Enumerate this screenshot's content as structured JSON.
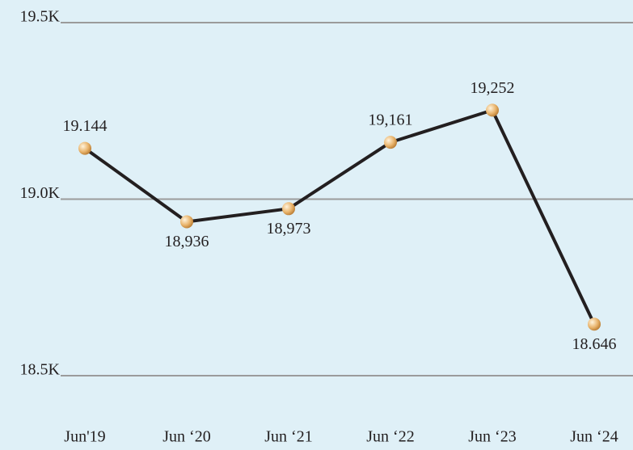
{
  "chart_data": {
    "type": "line",
    "categories": [
      "Jun'19",
      "Jun ‘20",
      "Jun ‘21",
      "Jun ‘22",
      "Jun ‘23",
      "Jun ‘24"
    ],
    "values": [
      19144,
      18936,
      18973,
      19161,
      19252,
      18646
    ],
    "value_labels": [
      "19.144",
      "18,936",
      "18,973",
      "19,161",
      "19,252",
      "18.646"
    ],
    "color": "#231f20",
    "marker_color": "#e9b46c",
    "ylim": [
      18500,
      19500
    ],
    "yticks": [
      {
        "value": 18500,
        "label": "18.5K"
      },
      {
        "value": 19000,
        "label": "19.0K"
      },
      {
        "value": 19500,
        "label": "19.5K"
      }
    ],
    "grid": true
  }
}
